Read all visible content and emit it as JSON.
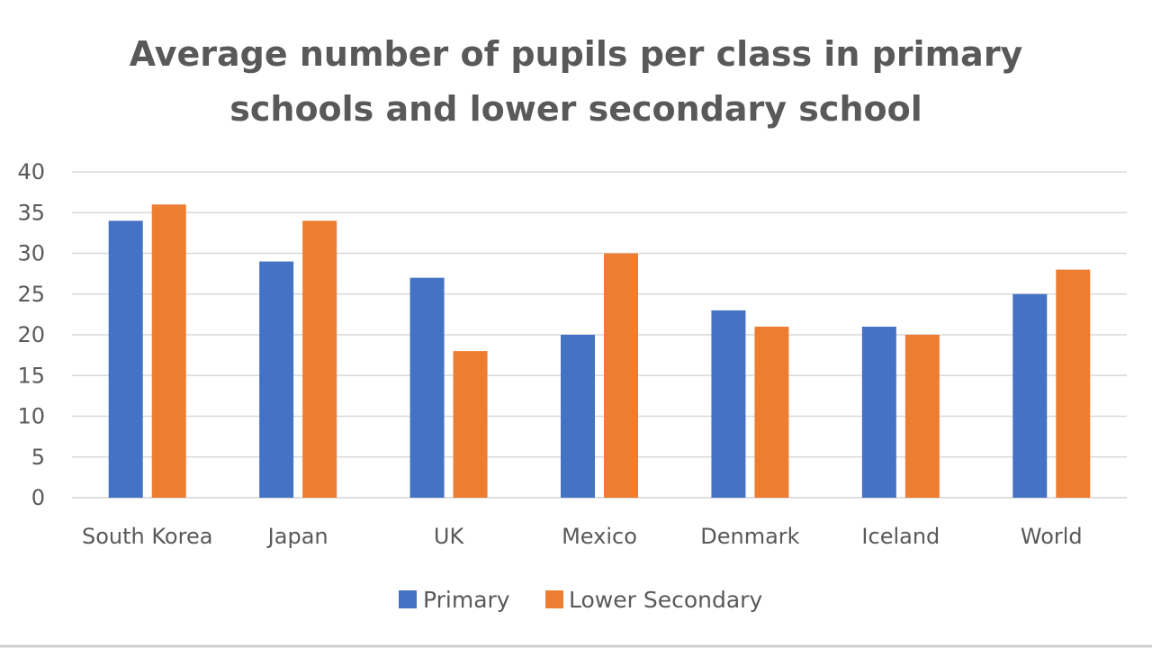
{
  "chart_data": {
    "type": "bar",
    "title": "Average number of pupils per class in primary schools and lower secondary school",
    "title_lines": [
      "Average number of pupils per class in primary",
      "schools and lower secondary school"
    ],
    "categories": [
      "South Korea",
      "Japan",
      "UK",
      "Mexico",
      "Denmark",
      "Iceland",
      "World"
    ],
    "series": [
      {
        "name": "Primary",
        "color": "#4472c4",
        "values": [
          34,
          29,
          27,
          20,
          23,
          21,
          25
        ]
      },
      {
        "name": "Lower Secondary",
        "color": "#ed7d31",
        "values": [
          36,
          34,
          18,
          30,
          21,
          20,
          28
        ]
      }
    ],
    "xlabel": "",
    "ylabel": "",
    "ylim": [
      0,
      40
    ],
    "yticks": [
      "0",
      "5",
      "10",
      "15",
      "20",
      "25",
      "30",
      "35",
      "40"
    ],
    "grid": true,
    "legend_position": "bottom"
  }
}
